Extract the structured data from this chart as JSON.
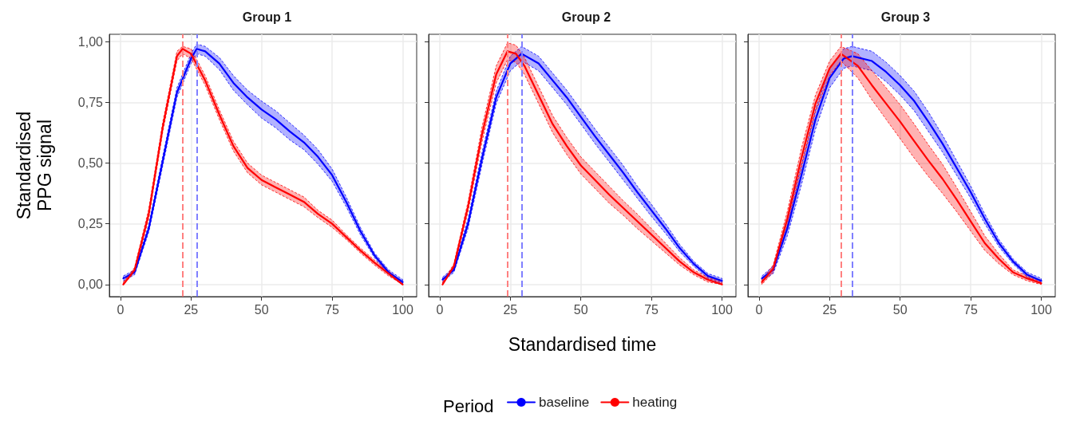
{
  "chart_data": [
    {
      "type": "line",
      "title": "Group 1",
      "ylabel": "Standardised\nPPG signal",
      "xlim": [
        -3.95,
        104.95
      ],
      "ylim": [
        -0.05,
        1.03
      ],
      "xticks": [
        0,
        25,
        50,
        75,
        100
      ],
      "yticks": [
        {
          "value": 0,
          "label": "0,00"
        },
        {
          "value": 0.25,
          "label": "0,25"
        },
        {
          "value": 0.5,
          "label": "0,50"
        },
        {
          "value": 0.75,
          "label": "0,75"
        },
        {
          "value": 1,
          "label": "1,00"
        }
      ],
      "grid": true,
      "marker": "none",
      "line_style": "solid",
      "series": [
        {
          "color": "#0000ff",
          "x": [
            1,
            5,
            10,
            15,
            20,
            25,
            27,
            30,
            35,
            40,
            45,
            50,
            55,
            60,
            65,
            70,
            75,
            80,
            85,
            90,
            95,
            100
          ],
          "values": [
            0.025,
            0.05,
            0.23,
            0.51,
            0.79,
            0.93,
            0.97,
            0.96,
            0.91,
            0.83,
            0.77,
            0.72,
            0.68,
            0.63,
            0.585,
            0.525,
            0.45,
            0.34,
            0.22,
            0.12,
            0.05,
            0.01
          ],
          "lower": [
            0.015,
            0.04,
            0.215,
            0.49,
            0.77,
            0.91,
            0.95,
            0.94,
            0.885,
            0.8,
            0.74,
            0.685,
            0.645,
            0.595,
            0.555,
            0.495,
            0.425,
            0.32,
            0.205,
            0.11,
            0.04,
            0.0
          ],
          "upper": [
            0.035,
            0.06,
            0.245,
            0.53,
            0.81,
            0.95,
            0.99,
            0.98,
            0.935,
            0.86,
            0.8,
            0.755,
            0.715,
            0.665,
            0.615,
            0.555,
            0.475,
            0.36,
            0.235,
            0.13,
            0.06,
            0.02
          ]
        },
        {
          "color": "#ff0000",
          "x": [
            1,
            5,
            10,
            15,
            20,
            22,
            25,
            30,
            35,
            40,
            45,
            50,
            55,
            60,
            65,
            70,
            75,
            80,
            85,
            90,
            95,
            100
          ],
          "values": [
            0.0,
            0.06,
            0.29,
            0.65,
            0.94,
            0.97,
            0.95,
            0.84,
            0.7,
            0.57,
            0.48,
            0.43,
            0.4,
            0.37,
            0.34,
            0.29,
            0.25,
            0.195,
            0.14,
            0.09,
            0.045,
            0.0
          ],
          "lower": [
            0.0,
            0.05,
            0.27,
            0.63,
            0.92,
            0.95,
            0.93,
            0.82,
            0.68,
            0.55,
            0.46,
            0.41,
            0.38,
            0.35,
            0.32,
            0.275,
            0.235,
            0.185,
            0.13,
            0.08,
            0.035,
            0.0
          ],
          "upper": [
            0.01,
            0.07,
            0.31,
            0.67,
            0.96,
            0.98,
            0.97,
            0.86,
            0.72,
            0.59,
            0.5,
            0.45,
            0.42,
            0.39,
            0.36,
            0.305,
            0.265,
            0.205,
            0.15,
            0.1,
            0.055,
            0.01
          ]
        }
      ],
      "ref_lines": [
        {
          "axis": "x",
          "value": 27,
          "color": "#8080ff",
          "line_style": "dashed"
        },
        {
          "axis": "x",
          "value": 22,
          "color": "#ff8080",
          "line_style": "dashed"
        }
      ]
    },
    {
      "type": "line",
      "title": "Group 2",
      "xlabel": "Standardised time",
      "legend": "bottom",
      "legend_title": "Period",
      "tick_labels": "x",
      "xlim": [
        -3.95,
        104.95
      ],
      "ylim": [
        -0.05,
        1.03
      ],
      "xticks": [
        0,
        25,
        50,
        75,
        100
      ],
      "yticks": [
        {
          "value": 0,
          "label": null
        },
        {
          "value": 0.25,
          "label": null
        },
        {
          "value": 0.5,
          "label": null
        },
        {
          "value": 0.75,
          "label": null
        },
        {
          "value": 1,
          "label": null
        }
      ],
      "grid": true,
      "marker": "none",
      "line_style": "solid",
      "series": [
        {
          "name": "baseline",
          "color": "#0000ff",
          "x": [
            1,
            5,
            10,
            15,
            20,
            25,
            29,
            35,
            40,
            45,
            50,
            55,
            60,
            65,
            70,
            75,
            80,
            85,
            90,
            95,
            100
          ],
          "values": [
            0.02,
            0.06,
            0.25,
            0.52,
            0.77,
            0.91,
            0.95,
            0.91,
            0.84,
            0.77,
            0.69,
            0.61,
            0.535,
            0.46,
            0.38,
            0.305,
            0.23,
            0.15,
            0.085,
            0.035,
            0.015
          ],
          "lower": [
            0.01,
            0.05,
            0.23,
            0.495,
            0.745,
            0.88,
            0.92,
            0.88,
            0.81,
            0.74,
            0.66,
            0.58,
            0.505,
            0.43,
            0.355,
            0.28,
            0.21,
            0.135,
            0.075,
            0.025,
            0.005
          ],
          "upper": [
            0.03,
            0.07,
            0.27,
            0.545,
            0.795,
            0.94,
            0.98,
            0.94,
            0.87,
            0.8,
            0.72,
            0.64,
            0.565,
            0.49,
            0.405,
            0.33,
            0.25,
            0.165,
            0.095,
            0.045,
            0.025
          ]
        },
        {
          "name": "heating",
          "color": "#ff0000",
          "x": [
            1,
            5,
            10,
            15,
            20,
            24,
            27,
            30,
            35,
            40,
            45,
            50,
            55,
            60,
            65,
            70,
            75,
            80,
            85,
            90,
            95,
            100
          ],
          "values": [
            0.0,
            0.075,
            0.32,
            0.62,
            0.865,
            0.96,
            0.95,
            0.9,
            0.78,
            0.66,
            0.57,
            0.49,
            0.43,
            0.37,
            0.315,
            0.26,
            0.205,
            0.15,
            0.095,
            0.05,
            0.02,
            0.0
          ],
          "lower": [
            0.0,
            0.065,
            0.3,
            0.59,
            0.83,
            0.925,
            0.915,
            0.865,
            0.745,
            0.625,
            0.535,
            0.455,
            0.395,
            0.335,
            0.285,
            0.23,
            0.18,
            0.13,
            0.08,
            0.04,
            0.01,
            0.0
          ],
          "upper": [
            0.01,
            0.085,
            0.34,
            0.65,
            0.9,
            0.995,
            0.985,
            0.935,
            0.815,
            0.695,
            0.605,
            0.525,
            0.465,
            0.405,
            0.345,
            0.29,
            0.23,
            0.17,
            0.11,
            0.06,
            0.03,
            0.01
          ]
        }
      ],
      "ref_lines": [
        {
          "axis": "x",
          "value": 29,
          "color": "#8080ff",
          "line_style": "dashed"
        },
        {
          "axis": "x",
          "value": 24,
          "color": "#ff8080",
          "line_style": "dashed"
        }
      ]
    },
    {
      "type": "line",
      "title": "Group 3",
      "tick_labels": "x",
      "xlim": [
        -3.95,
        104.95
      ],
      "ylim": [
        -0.05,
        1.03
      ],
      "xticks": [
        0,
        25,
        50,
        75,
        100
      ],
      "yticks": [
        {
          "value": 0,
          "label": null
        },
        {
          "value": 0.25,
          "label": null
        },
        {
          "value": 0.5,
          "label": null
        },
        {
          "value": 0.75,
          "label": null
        },
        {
          "value": 1,
          "label": null
        }
      ],
      "grid": true,
      "marker": "none",
      "line_style": "solid",
      "series": [
        {
          "color": "#0000ff",
          "x": [
            1,
            5,
            10,
            15,
            20,
            25,
            30,
            33,
            40,
            45,
            50,
            55,
            60,
            65,
            70,
            75,
            80,
            85,
            90,
            95,
            100
          ],
          "values": [
            0.025,
            0.06,
            0.23,
            0.45,
            0.68,
            0.85,
            0.93,
            0.94,
            0.92,
            0.875,
            0.82,
            0.755,
            0.67,
            0.58,
            0.48,
            0.38,
            0.27,
            0.17,
            0.095,
            0.04,
            0.015
          ],
          "lower": [
            0.015,
            0.045,
            0.2,
            0.41,
            0.64,
            0.81,
            0.89,
            0.9,
            0.88,
            0.835,
            0.78,
            0.715,
            0.63,
            0.545,
            0.45,
            0.355,
            0.25,
            0.155,
            0.085,
            0.03,
            0.005
          ],
          "upper": [
            0.035,
            0.075,
            0.26,
            0.49,
            0.72,
            0.89,
            0.97,
            0.98,
            0.96,
            0.915,
            0.86,
            0.795,
            0.71,
            0.615,
            0.51,
            0.405,
            0.29,
            0.185,
            0.105,
            0.05,
            0.025
          ]
        },
        {
          "color": "#ff0000",
          "x": [
            1,
            5,
            10,
            15,
            20,
            25,
            29,
            35,
            40,
            45,
            50,
            55,
            60,
            65,
            70,
            75,
            80,
            85,
            90,
            95,
            100
          ],
          "values": [
            0.01,
            0.065,
            0.27,
            0.52,
            0.745,
            0.89,
            0.95,
            0.9,
            0.82,
            0.745,
            0.67,
            0.59,
            0.51,
            0.435,
            0.35,
            0.26,
            0.17,
            0.105,
            0.05,
            0.025,
            0.005
          ],
          "lower": [
            0.0,
            0.05,
            0.24,
            0.48,
            0.71,
            0.86,
            0.92,
            0.85,
            0.76,
            0.68,
            0.6,
            0.52,
            0.445,
            0.375,
            0.3,
            0.22,
            0.14,
            0.085,
            0.04,
            0.015,
            0.0
          ],
          "upper": [
            0.02,
            0.08,
            0.3,
            0.56,
            0.78,
            0.92,
            0.98,
            0.95,
            0.88,
            0.81,
            0.74,
            0.66,
            0.575,
            0.495,
            0.4,
            0.3,
            0.2,
            0.125,
            0.06,
            0.035,
            0.01
          ]
        }
      ],
      "ref_lines": [
        {
          "axis": "x",
          "value": 33,
          "color": "#8080ff",
          "line_style": "dashed"
        },
        {
          "axis": "x",
          "value": 29,
          "color": "#ff8080",
          "line_style": "dashed"
        }
      ]
    }
  ]
}
